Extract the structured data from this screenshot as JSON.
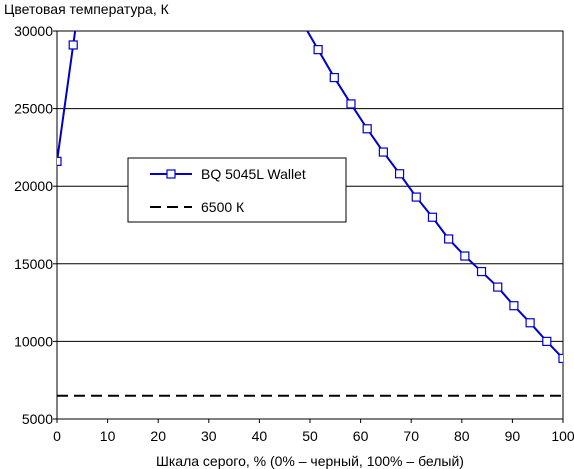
{
  "chart_data": {
    "type": "line",
    "title": "",
    "ylabel": "Цветовая температура, К",
    "xlabel": "Шкала серого, % (0% – черный, 100% – белый)",
    "xlim": [
      0,
      100
    ],
    "ylim": [
      5000,
      30000
    ],
    "x_ticks": [
      0,
      10,
      20,
      30,
      40,
      50,
      60,
      70,
      80,
      90,
      100
    ],
    "y_ticks": [
      5000,
      10000,
      15000,
      20000,
      25000,
      30000
    ],
    "grid": "horizontal",
    "legend_position": "center-left",
    "series": [
      {
        "name": "BQ 5045L Wallet",
        "color": "#0000cc",
        "marker": "square",
        "style": "solid",
        "x": [
          0,
          3.2,
          6.5,
          9.7,
          12.9,
          16.1,
          19.4,
          22.6,
          25.8,
          29,
          32.3,
          35.5,
          38.7,
          41.9,
          45.2,
          48.4,
          51.6,
          54.8,
          58.1,
          61.3,
          64.5,
          67.7,
          71,
          74.2,
          77.4,
          80.6,
          83.9,
          87.1,
          90.3,
          93.5,
          96.8,
          100
        ],
        "y": [
          21600,
          29100,
          null,
          null,
          null,
          null,
          null,
          null,
          null,
          null,
          null,
          null,
          null,
          null,
          null,
          null,
          28800,
          27000,
          25300,
          23700,
          22200,
          20800,
          19300,
          18000,
          16600,
          15500,
          14500,
          13500,
          12300,
          11200,
          10000,
          8900
        ]
      },
      {
        "name": "6500 К",
        "color": "#000000",
        "style": "dashed",
        "x": [
          0,
          100
        ],
        "y": [
          6500,
          6500
        ]
      }
    ]
  }
}
